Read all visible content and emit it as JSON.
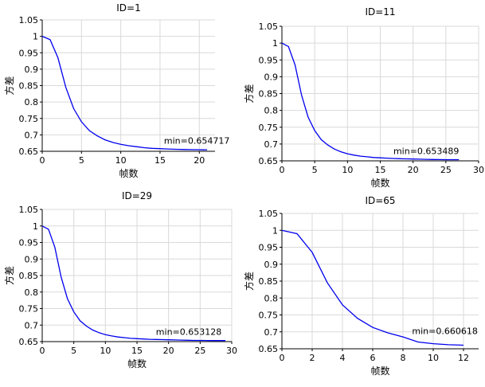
{
  "figure": {
    "line_color": "#0000ee",
    "grid_color": "#d9d9d9",
    "axis_color": "#000000"
  },
  "chart_data": [
    {
      "type": "line",
      "title": "ID=1",
      "xlabel": "帧数",
      "ylabel": "方差",
      "xlim": [
        0,
        22
      ],
      "ylim": [
        0.65,
        1.05
      ],
      "xticks": [
        0,
        5,
        10,
        15,
        20
      ],
      "yticks": [
        0.65,
        0.7,
        0.75,
        0.8,
        0.85,
        0.9,
        0.95,
        1,
        1.05
      ],
      "grid": true,
      "annotation": {
        "text": "min=0.654717",
        "x": 15.5,
        "y": 0.673
      },
      "series": [
        {
          "x": [
            0,
            1,
            2,
            3,
            4,
            5,
            6,
            7,
            8,
            9,
            10,
            11,
            12,
            13,
            14,
            15,
            16,
            17,
            18,
            19,
            20,
            21
          ],
          "y": [
            1,
            0.99,
            0.935,
            0.845,
            0.78,
            0.74,
            0.713,
            0.697,
            0.685,
            0.677,
            0.671,
            0.667,
            0.664,
            0.661,
            0.659,
            0.658,
            0.657,
            0.656,
            0.6555,
            0.655,
            0.6548,
            0.654717
          ]
        }
      ]
    },
    {
      "type": "line",
      "title": "ID=11",
      "xlabel": "帧数",
      "ylabel": "方差",
      "xlim": [
        0,
        30
      ],
      "ylim": [
        0.65,
        1.05
      ],
      "xticks": [
        0,
        5,
        10,
        15,
        20,
        25,
        30
      ],
      "yticks": [
        0.65,
        0.7,
        0.75,
        0.8,
        0.85,
        0.9,
        0.95,
        1,
        1.05
      ],
      "grid": true,
      "annotation": {
        "text": "min=0.653489",
        "x": 17,
        "y": 0.67
      },
      "series": [
        {
          "x": [
            0,
            1,
            2,
            3,
            4,
            5,
            6,
            7,
            8,
            9,
            10,
            11,
            12,
            13,
            14,
            15,
            16,
            17,
            18,
            19,
            20,
            21,
            22,
            23,
            24,
            25,
            26,
            27
          ],
          "y": [
            1,
            0.99,
            0.935,
            0.845,
            0.78,
            0.74,
            0.713,
            0.697,
            0.685,
            0.677,
            0.671,
            0.667,
            0.664,
            0.662,
            0.66,
            0.659,
            0.658,
            0.657,
            0.6565,
            0.656,
            0.6555,
            0.655,
            0.6545,
            0.654,
            0.6538,
            0.6536,
            0.6535,
            0.653489
          ]
        }
      ]
    },
    {
      "type": "line",
      "title": "ID=29",
      "xlabel": "帧数",
      "ylabel": "方差",
      "xlim": [
        0,
        30
      ],
      "ylim": [
        0.65,
        1.05
      ],
      "xticks": [
        0,
        5,
        10,
        15,
        20,
        25,
        30
      ],
      "yticks": [
        0.65,
        0.7,
        0.75,
        0.8,
        0.85,
        0.9,
        0.95,
        1,
        1.05
      ],
      "grid": true,
      "annotation": {
        "text": "min=0.653128",
        "x": 18,
        "y": 0.67
      },
      "series": [
        {
          "x": [
            0,
            1,
            2,
            3,
            4,
            5,
            6,
            7,
            8,
            9,
            10,
            11,
            12,
            13,
            14,
            15,
            16,
            17,
            18,
            19,
            20,
            21,
            22,
            23,
            24,
            25,
            26,
            27,
            28,
            29
          ],
          "y": [
            1,
            0.99,
            0.935,
            0.845,
            0.78,
            0.74,
            0.713,
            0.697,
            0.685,
            0.677,
            0.671,
            0.667,
            0.664,
            0.662,
            0.66,
            0.659,
            0.658,
            0.657,
            0.6565,
            0.656,
            0.6555,
            0.655,
            0.6545,
            0.654,
            0.6537,
            0.6535,
            0.6533,
            0.6532,
            0.6531,
            0.653128
          ]
        }
      ]
    },
    {
      "type": "line",
      "title": "ID=65",
      "xlabel": "帧数",
      "ylabel": "方差",
      "xlim": [
        0,
        13
      ],
      "ylim": [
        0.65,
        1.05
      ],
      "xticks": [
        0,
        2,
        4,
        6,
        8,
        10,
        12
      ],
      "yticks": [
        0.65,
        0.7,
        0.75,
        0.8,
        0.85,
        0.9,
        0.95,
        1,
        1.05
      ],
      "grid": true,
      "annotation": {
        "text": "min=0.660618",
        "x": 8.6,
        "y": 0.694
      },
      "series": [
        {
          "x": [
            0,
            1,
            2,
            3,
            4,
            5,
            6,
            7,
            8,
            9,
            10,
            11,
            12
          ],
          "y": [
            1,
            0.99,
            0.935,
            0.845,
            0.78,
            0.74,
            0.713,
            0.697,
            0.685,
            0.67,
            0.665,
            0.662,
            0.660618
          ]
        }
      ]
    }
  ]
}
